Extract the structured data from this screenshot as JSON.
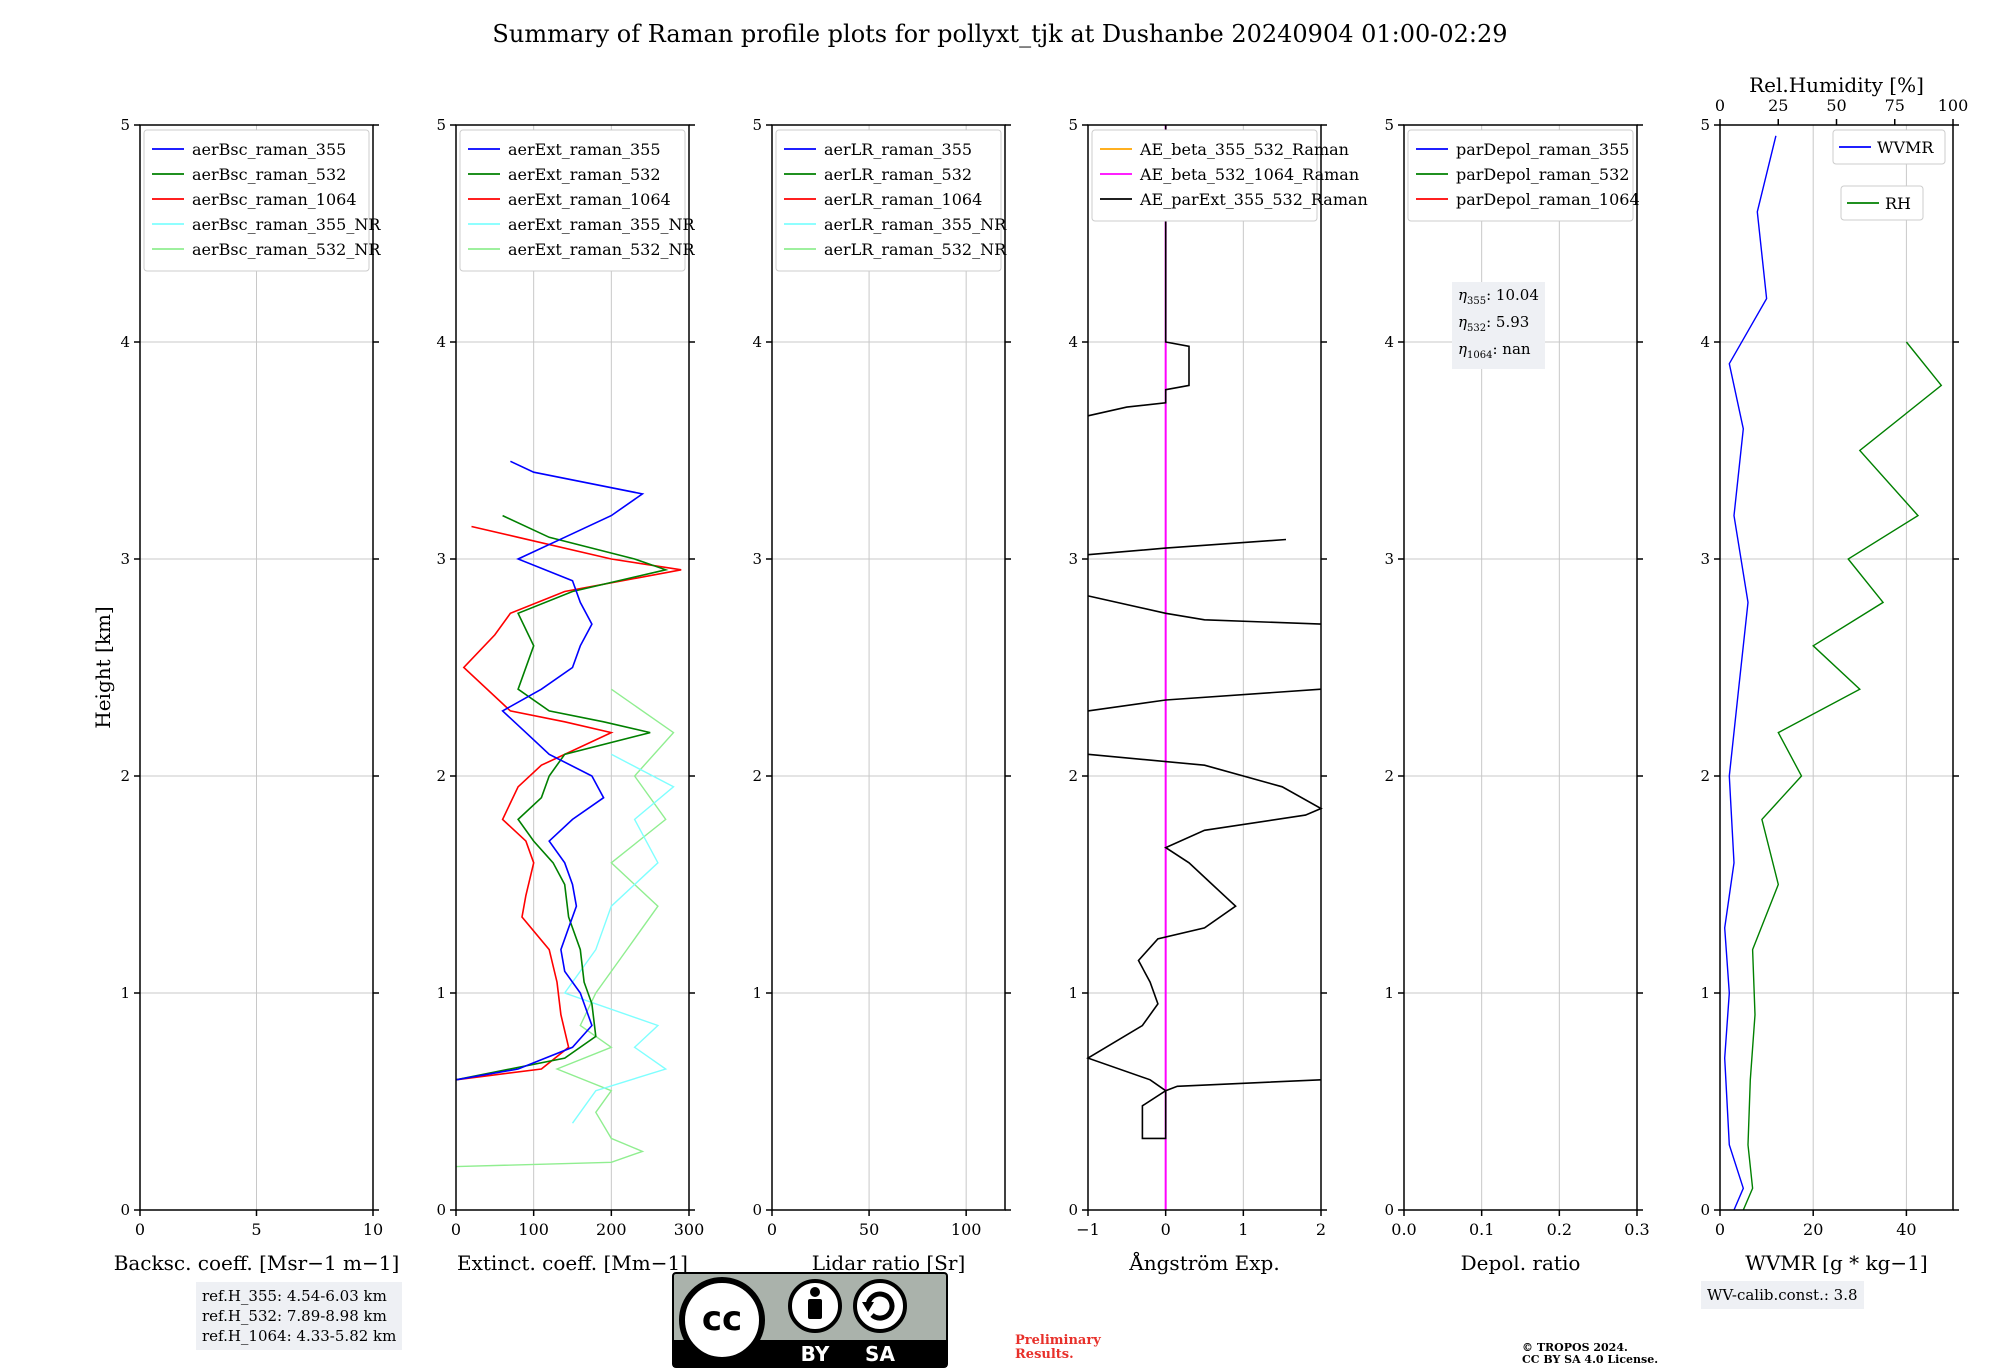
{
  "title": "Summary of Raman profile plots for pollyxt_tjk at Dushanbe 20240904 01:00-02:29",
  "ylabel": "Height [km]",
  "panels": [
    {
      "id": "bsc",
      "xlabel_html": "Backsc. coeff. [Msr<tspan baseline-shift=\"super\" font-size=\"13\">−1</tspan> m<tspan baseline-shift=\"super\" font-size=\"13\">−1</tspan>]",
      "xlabel": "Backsc. coeff. [Msr−1 m−1]",
      "xlim": [
        0,
        10
      ],
      "xticks": [
        "0",
        "5",
        "10"
      ],
      "legend": [
        "aerBsc_raman_355",
        "aerBsc_raman_532",
        "aerBsc_raman_1064",
        "aerBsc_raman_355_NR",
        "aerBsc_raman_532_NR"
      ]
    },
    {
      "id": "ext",
      "xlabel": "Extinct. coeff. [Mm−1]",
      "xlim": [
        0,
        300
      ],
      "xticks": [
        "0",
        "100",
        "200",
        "300"
      ],
      "legend": [
        "aerExt_raman_355",
        "aerExt_raman_532",
        "aerExt_raman_1064",
        "aerExt_raman_355_NR",
        "aerExt_raman_532_NR"
      ]
    },
    {
      "id": "lr",
      "xlabel": "Lidar ratio [Sr]",
      "xlim": [
        0,
        120
      ],
      "xticks": [
        "0",
        "50",
        "100"
      ],
      "legend": [
        "aerLR_raman_355",
        "aerLR_raman_532",
        "aerLR_raman_1064",
        "aerLR_raman_355_NR",
        "aerLR_raman_532_NR"
      ]
    },
    {
      "id": "ae",
      "xlabel": "Ångström Exp.",
      "xlim": [
        -1,
        2
      ],
      "xticks": [
        "−1",
        "0",
        "1",
        "2"
      ],
      "legend": [
        "AE_beta_355_532_Raman",
        "AE_beta_532_1064_Raman",
        "AE_parExt_355_532_Raman"
      ]
    },
    {
      "id": "dep",
      "xlabel": "Depol. ratio",
      "xlim": [
        0,
        0.3
      ],
      "xticks": [
        "0.0",
        "0.1",
        "0.2",
        "0.3"
      ],
      "legend": [
        "parDepol_raman_355",
        "parDepol_raman_532",
        "parDepol_raman_1064"
      ]
    },
    {
      "id": "wv",
      "xlabel": "WVMR [g * kg−1]",
      "xlim": [
        0,
        50
      ],
      "xticks": [
        "0",
        "20",
        "40"
      ],
      "top_label": "Rel.Humidity [%]",
      "top_ticks": [
        "0",
        "25",
        "50",
        "75",
        "100"
      ],
      "legend": [
        "WVMR",
        "RH"
      ]
    }
  ],
  "yticks": [
    "0",
    "1",
    "2",
    "3",
    "4",
    "5"
  ],
  "eta": {
    "e355": "10.04",
    "e532": "5.93",
    "e1064": "nan"
  },
  "refh": [
    "ref.H_355: 4.54-6.03 km",
    "ref.H_532: 7.89-8.98 km",
    "ref.H_1064: 4.33-5.82 km"
  ],
  "wv_calib": "WV-calib.const.: 3.8",
  "prelim": [
    "Preliminary",
    "Results."
  ],
  "copyright": [
    "© TROPOS 2024.",
    "CC BY SA 4.0 License."
  ],
  "cc_labels": {
    "cc": "cc",
    "by": "BY",
    "sa": "SA"
  },
  "colors": {
    "c355": "#0000ff",
    "c532": "#008000",
    "c1064": "#ff0000",
    "c355nr": "#7fffff",
    "c532nr": "#90ee90",
    "ae1": "#ffa500",
    "ae2": "#ff00ff",
    "ae3": "#000000"
  },
  "chart_data": {
    "type": "line",
    "ylim": [
      0,
      5
    ],
    "ext_355": [
      [
        0,
        0.6
      ],
      [
        80,
        0.65
      ],
      [
        150,
        0.75
      ],
      [
        175,
        0.85
      ],
      [
        160,
        1.0
      ],
      [
        140,
        1.1
      ],
      [
        135,
        1.2
      ],
      [
        145,
        1.3
      ],
      [
        155,
        1.4
      ],
      [
        150,
        1.5
      ],
      [
        140,
        1.6
      ],
      [
        120,
        1.7
      ],
      [
        150,
        1.8
      ],
      [
        190,
        1.9
      ],
      [
        175,
        2.0
      ],
      [
        120,
        2.1
      ],
      [
        90,
        2.2
      ],
      [
        60,
        2.3
      ],
      [
        110,
        2.4
      ],
      [
        150,
        2.5
      ],
      [
        160,
        2.6
      ],
      [
        175,
        2.7
      ],
      [
        160,
        2.8
      ],
      [
        150,
        2.9
      ],
      [
        80,
        3.0
      ],
      [
        140,
        3.1
      ],
      [
        200,
        3.2
      ],
      [
        240,
        3.3
      ],
      [
        100,
        3.4
      ],
      [
        70,
        3.45
      ]
    ],
    "ext_532": [
      [
        0,
        0.6
      ],
      [
        140,
        0.7
      ],
      [
        180,
        0.8
      ],
      [
        175,
        0.95
      ],
      [
        165,
        1.05
      ],
      [
        160,
        1.2
      ],
      [
        145,
        1.35
      ],
      [
        140,
        1.5
      ],
      [
        125,
        1.6
      ],
      [
        100,
        1.7
      ],
      [
        80,
        1.8
      ],
      [
        110,
        1.9
      ],
      [
        120,
        2.0
      ],
      [
        140,
        2.1
      ],
      [
        250,
        2.2
      ],
      [
        190,
        2.25
      ],
      [
        120,
        2.3
      ],
      [
        80,
        2.4
      ],
      [
        100,
        2.6
      ],
      [
        80,
        2.75
      ],
      [
        150,
        2.85
      ],
      [
        270,
        2.95
      ],
      [
        230,
        3.0
      ],
      [
        120,
        3.1
      ],
      [
        60,
        3.2
      ]
    ],
    "ext_1064": [
      [
        0,
        0.6
      ],
      [
        110,
        0.65
      ],
      [
        145,
        0.75
      ],
      [
        135,
        0.9
      ],
      [
        130,
        1.05
      ],
      [
        120,
        1.2
      ],
      [
        85,
        1.35
      ],
      [
        90,
        1.45
      ],
      [
        100,
        1.6
      ],
      [
        90,
        1.7
      ],
      [
        60,
        1.8
      ],
      [
        80,
        1.95
      ],
      [
        110,
        2.05
      ],
      [
        200,
        2.2
      ],
      [
        140,
        2.25
      ],
      [
        70,
        2.3
      ],
      [
        10,
        2.5
      ],
      [
        50,
        2.65
      ],
      [
        70,
        2.75
      ],
      [
        140,
        2.85
      ],
      [
        290,
        2.95
      ],
      [
        200,
        3.0
      ],
      [
        80,
        3.1
      ],
      [
        20,
        3.15
      ]
    ],
    "ext_355_NR": [
      [
        150,
        0.4
      ],
      [
        180,
        0.55
      ],
      [
        270,
        0.65
      ],
      [
        230,
        0.75
      ],
      [
        260,
        0.85
      ],
      [
        140,
        1.0
      ],
      [
        180,
        1.2
      ],
      [
        200,
        1.4
      ],
      [
        260,
        1.6
      ],
      [
        230,
        1.8
      ],
      [
        280,
        1.95
      ],
      [
        200,
        2.1
      ]
    ],
    "ext_532_NR": [
      [
        0,
        0.2
      ],
      [
        200,
        0.22
      ],
      [
        240,
        0.27
      ],
      [
        200,
        0.33
      ],
      [
        180,
        0.45
      ],
      [
        200,
        0.55
      ],
      [
        130,
        0.65
      ],
      [
        200,
        0.75
      ],
      [
        160,
        0.85
      ],
      [
        180,
        1.0
      ],
      [
        220,
        1.2
      ],
      [
        260,
        1.4
      ],
      [
        200,
        1.6
      ],
      [
        270,
        1.8
      ],
      [
        230,
        2.0
      ],
      [
        280,
        2.2
      ],
      [
        200,
        2.4
      ]
    ],
    "ae_parExt": [
      [
        2,
        0.6
      ],
      [
        0.15,
        0.57
      ],
      [
        0,
        0.55
      ],
      [
        -0.3,
        0.48
      ],
      [
        -0.3,
        0.33
      ],
      [
        0,
        0.33
      ],
      [
        0,
        0.55
      ],
      [
        -0.2,
        0.6
      ],
      [
        -1,
        0.7
      ],
      [
        -0.3,
        0.85
      ],
      [
        -0.1,
        0.95
      ],
      [
        -0.2,
        1.05
      ],
      [
        -0.35,
        1.15
      ],
      [
        -0.1,
        1.25
      ],
      [
        0.5,
        1.3
      ],
      [
        0.9,
        1.4
      ],
      [
        0.6,
        1.5
      ],
      [
        0.3,
        1.6
      ],
      [
        0,
        1.67
      ],
      [
        0.5,
        1.75
      ],
      [
        1.8,
        1.82
      ],
      [
        2,
        1.85
      ],
      [
        1.5,
        1.95
      ],
      [
        0.5,
        2.05
      ],
      [
        -1,
        2.1
      ]
    ],
    "ae_parExt_b": [
      [
        2,
        2.4
      ],
      [
        0,
        2.35
      ],
      [
        -1,
        2.3
      ]
    ],
    "ae_parExt_c": [
      [
        -1,
        2.83
      ],
      [
        0,
        2.75
      ],
      [
        0.5,
        2.72
      ],
      [
        2,
        2.7
      ]
    ],
    "ae_parExt_d": [
      [
        -1,
        3.02
      ],
      [
        0,
        3.05
      ],
      [
        1.55,
        3.09
      ]
    ],
    "ae_parExt_e": [
      [
        -1,
        3.66
      ],
      [
        -0.5,
        3.7
      ],
      [
        0,
        3.72
      ],
      [
        0,
        3.78
      ],
      [
        0.3,
        3.8
      ],
      [
        0.3,
        3.98
      ],
      [
        0,
        4.0
      ],
      [
        0,
        5
      ]
    ],
    "wvmr": [
      [
        3,
        0
      ],
      [
        5,
        0.1
      ],
      [
        2,
        0.3
      ],
      [
        1,
        0.7
      ],
      [
        2,
        1.0
      ],
      [
        1,
        1.3
      ],
      [
        3,
        1.6
      ],
      [
        2,
        2.0
      ],
      [
        4,
        2.4
      ],
      [
        6,
        2.8
      ],
      [
        3,
        3.2
      ],
      [
        5,
        3.6
      ],
      [
        2,
        3.9
      ],
      [
        10,
        4.2
      ],
      [
        8,
        4.6
      ],
      [
        12,
        4.95
      ]
    ],
    "rh": [
      [
        10,
        0
      ],
      [
        14,
        0.1
      ],
      [
        12,
        0.3
      ],
      [
        13,
        0.6
      ],
      [
        15,
        0.9
      ],
      [
        14,
        1.2
      ],
      [
        25,
        1.5
      ],
      [
        18,
        1.8
      ],
      [
        35,
        2.0
      ],
      [
        25,
        2.2
      ],
      [
        60,
        2.4
      ],
      [
        40,
        2.6
      ],
      [
        70,
        2.8
      ],
      [
        55,
        3.0
      ],
      [
        85,
        3.2
      ],
      [
        60,
        3.5
      ],
      [
        95,
        3.8
      ],
      [
        80,
        4.0
      ]
    ]
  }
}
